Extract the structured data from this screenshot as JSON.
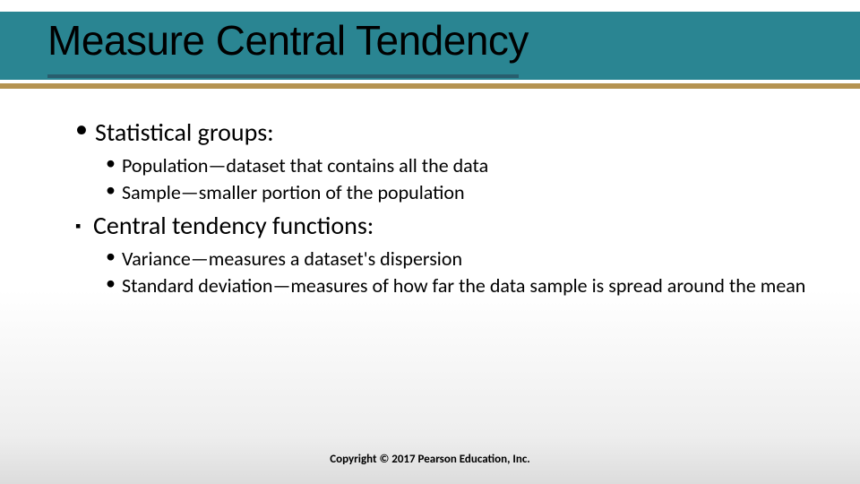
{
  "colors": {
    "title_bar_bg": "#2a8592",
    "title_underline": "#285e6e",
    "gold_bar": "#b59351",
    "text": "#000000",
    "bg_gradient_top": "#ffffff",
    "bg_gradient_bottom": "#dcdcdc"
  },
  "typography": {
    "title_fontsize": 46,
    "lvl1_fontsize": 28,
    "lvl2_fontsize": 22,
    "footer_fontsize": 13
  },
  "slide": {
    "title": "Measure Central Tendency",
    "sections": [
      {
        "bullet": "dot",
        "heading": "Statistical groups:",
        "items": [
          "Population—dataset that contains all the data",
          "Sample—smaller portion of the population"
        ]
      },
      {
        "bullet": "square",
        "heading": "Central tendency functions:",
        "items": [
          "Variance—measures a dataset's dispersion",
          "Standard deviation—measures of how far the data sample is spread around the mean"
        ]
      }
    ],
    "footer": "Copyright © 2017 Pearson Education, Inc."
  }
}
